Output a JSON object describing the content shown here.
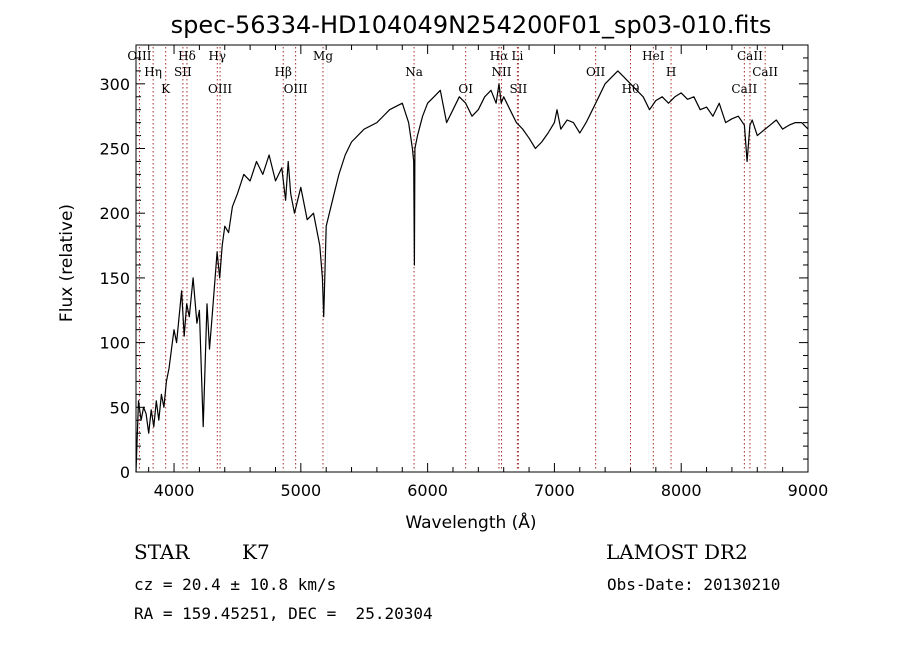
{
  "chart_data": {
    "type": "line",
    "title": "spec-56334-HD104049N254200F01_sp03-010.fits",
    "xlabel": "Wavelength (Å)",
    "ylabel": "Flux (relative)",
    "xlim": [
      3700,
      9000
    ],
    "ylim": [
      0,
      330
    ],
    "x_ticks": [
      "4000",
      "5000",
      "6000",
      "7000",
      "8000",
      "9000"
    ],
    "y_ticks": [
      "0",
      "50",
      "100",
      "150",
      "200",
      "250",
      "300"
    ],
    "grid": false,
    "series": [
      {
        "x": [
          3700,
          3720,
          3740,
          3760,
          3780,
          3800,
          3820,
          3840,
          3860,
          3880,
          3900,
          3920,
          3940,
          3960,
          3980,
          4000,
          4020,
          4040,
          4060,
          4080,
          4100,
          4120,
          4150,
          4180,
          4200,
          4230,
          4260,
          4280,
          4300,
          4320,
          4340,
          4360,
          4380,
          4400,
          4430,
          4460,
          4500,
          4550,
          4600,
          4650,
          4700,
          4750,
          4800,
          4850,
          4880,
          4900,
          4920,
          4950,
          5000,
          5050,
          5100,
          5150,
          5170,
          5180,
          5200,
          5250,
          5300,
          5350,
          5400,
          5500,
          5600,
          5700,
          5800,
          5850,
          5880,
          5890,
          5896,
          5900,
          5920,
          5960,
          6000,
          6050,
          6100,
          6150,
          6200,
          6250,
          6300,
          6350,
          6400,
          6450,
          6500,
          6540,
          6563,
          6580,
          6600,
          6650,
          6700,
          6750,
          6800,
          6850,
          6900,
          6950,
          7000,
          7020,
          7050,
          7100,
          7150,
          7200,
          7250,
          7300,
          7350,
          7400,
          7450,
          7500,
          7550,
          7600,
          7650,
          7700,
          7750,
          7800,
          7850,
          7900,
          7950,
          8000,
          8050,
          8100,
          8150,
          8200,
          8250,
          8300,
          8350,
          8400,
          8450,
          8498,
          8520,
          8542,
          8560,
          8600,
          8662,
          8700,
          8750,
          8800,
          8850,
          8900,
          8950,
          9000
        ],
        "y": [
          0,
          55,
          40,
          50,
          45,
          30,
          48,
          35,
          55,
          40,
          60,
          50,
          70,
          80,
          95,
          110,
          100,
          120,
          140,
          105,
          130,
          120,
          150,
          115,
          125,
          35,
          130,
          95,
          120,
          145,
          170,
          150,
          175,
          190,
          185,
          205,
          215,
          230,
          225,
          240,
          230,
          245,
          225,
          235,
          210,
          240,
          215,
          200,
          220,
          195,
          200,
          175,
          150,
          120,
          190,
          210,
          230,
          245,
          255,
          265,
          270,
          280,
          285,
          270,
          250,
          240,
          160,
          250,
          260,
          275,
          285,
          290,
          295,
          270,
          280,
          290,
          285,
          275,
          280,
          290,
          295,
          285,
          300,
          285,
          290,
          280,
          270,
          265,
          258,
          250,
          255,
          262,
          270,
          280,
          265,
          272,
          270,
          262,
          270,
          280,
          290,
          300,
          305,
          310,
          305,
          300,
          295,
          290,
          280,
          287,
          290,
          285,
          290,
          293,
          288,
          290,
          280,
          282,
          275,
          285,
          270,
          273,
          275,
          268,
          240,
          268,
          272,
          260,
          265,
          268,
          272,
          265,
          268,
          270,
          270,
          265
        ]
      }
    ],
    "annotations": [
      {
        "text": "OIII",
        "x": 3727
      },
      {
        "text": "Hη",
        "x": 3835
      },
      {
        "text": "K",
        "x": 3934
      },
      {
        "text": "Hδ",
        "x": 4102
      },
      {
        "text": "SII",
        "x": 4070
      },
      {
        "text": "OIII",
        "x": 4363
      },
      {
        "text": "Hγ",
        "x": 4341
      },
      {
        "text": "Hβ",
        "x": 4861
      },
      {
        "text": "OIII",
        "x": 4959
      },
      {
        "text": "Mg",
        "x": 5175
      },
      {
        "text": "Na",
        "x": 5893
      },
      {
        "text": "OI",
        "x": 6300
      },
      {
        "text": "Hα",
        "x": 6563
      },
      {
        "text": "NII",
        "x": 6583
      },
      {
        "text": "SII",
        "x": 6716
      },
      {
        "text": "Li",
        "x": 6708
      },
      {
        "text": "OII",
        "x": 7325
      },
      {
        "text": "Hθ",
        "x": 7600
      },
      {
        "text": "HeI",
        "x": 7780
      },
      {
        "text": "H",
        "x": 7920
      },
      {
        "text": "CaII",
        "x": 8498
      },
      {
        "text": "CaII",
        "x": 8542
      },
      {
        "text": "CaII",
        "x": 8662
      }
    ]
  },
  "info": {
    "class": "STAR",
    "subclass": "K7",
    "survey": "LAMOST DR2",
    "cz": "cz = 20.4 ± 10.8 km/s",
    "obs_date": "Obs-Date: 20130210",
    "radec": "RA = 159.45251, DEC =  25.20304"
  }
}
